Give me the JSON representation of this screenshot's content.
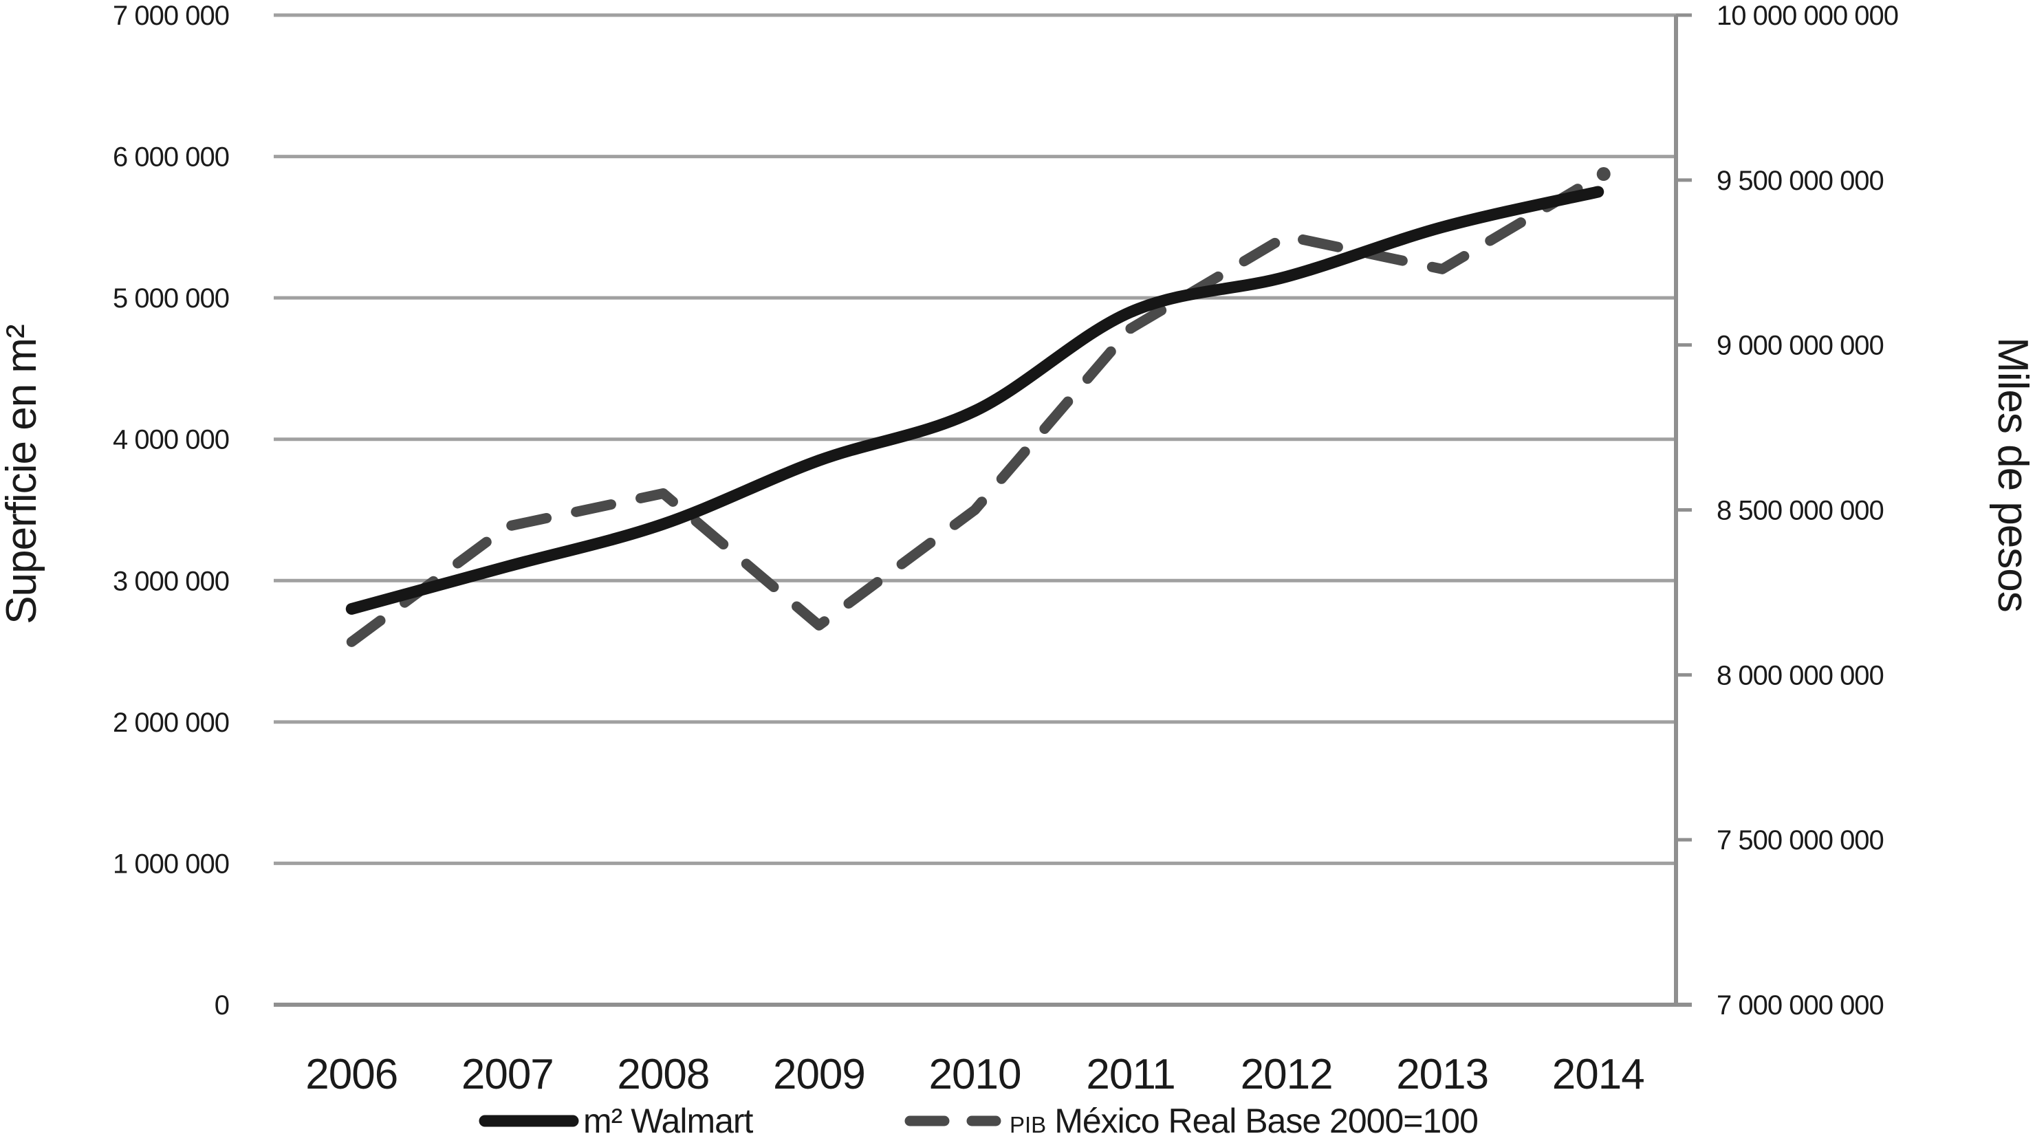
{
  "chart_data": {
    "type": "line",
    "title": "",
    "categories": [
      "2006",
      "2007",
      "2008",
      "2009",
      "2010",
      "2011",
      "2012",
      "2013",
      "2014"
    ],
    "series": [
      {
        "name": "m² Walmart",
        "axis": "left",
        "line_style": "solid",
        "color": "#161616",
        "values": [
          2800000,
          3100000,
          3400000,
          3850000,
          4200000,
          4900000,
          5150000,
          5500000,
          5750000
        ]
      },
      {
        "name": "PIB México Real Base 2000=100",
        "axis": "right",
        "line_style": "dashed",
        "color": "#4a4a4a",
        "end_dot": true,
        "values": [
          8100000000,
          8450000000,
          8550000000,
          8150000000,
          8500000000,
          9050000000,
          9330000000,
          9230000000,
          9510000000
        ]
      }
    ],
    "left_axis": {
      "label": "Superficie en m²",
      "min": 0,
      "max": 7000000,
      "step": 1000000,
      "tick_labels": [
        "0",
        "1 000 000",
        "2 000 000",
        "3 000 000",
        "4 000 000",
        "5 000 000",
        "6 000 000",
        "7 000 000"
      ]
    },
    "right_axis": {
      "label": "Miles de pesos",
      "min": 7000000000,
      "max": 10000000000,
      "step": 500000000,
      "tick_labels": [
        "7 000 000 000",
        "7 500 000 000",
        "8 000 000 000",
        "8 500 000 000",
        "9 000 000 000",
        "9 500 000 000",
        "10 000 000 000"
      ]
    },
    "grid": "horizontal",
    "legend_position": "bottom",
    "colors": {
      "gridline": "#a0a0a0",
      "axis": "#8f8f8f",
      "text": "#1a1a1a",
      "background": "#ffffff"
    }
  },
  "legend": {
    "walmart_label": "m² Walmart",
    "pib_prefix": "PIB",
    "pib_label": "México Real Base 2000=100"
  }
}
